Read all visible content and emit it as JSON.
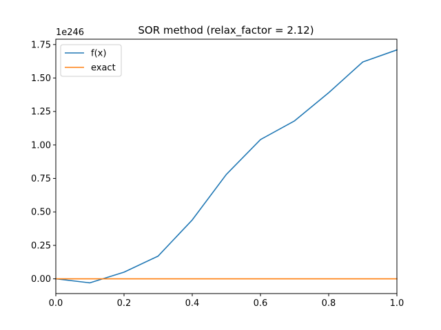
{
  "chart_data": {
    "type": "line",
    "title": "SOR method (relax_factor = 2.12)",
    "xlabel": "",
    "ylabel": "",
    "y_offset_label": "1e246",
    "xlim": [
      0.0,
      1.0
    ],
    "ylim": [
      -0.11,
      1.79
    ],
    "x_ticks": [
      0.0,
      0.2,
      0.4,
      0.6,
      0.8,
      1.0
    ],
    "x_tick_labels": [
      "0.0",
      "0.2",
      "0.4",
      "0.6",
      "0.8",
      "1.0"
    ],
    "y_ticks": [
      0.0,
      0.25,
      0.5,
      0.75,
      1.0,
      1.25,
      1.5,
      1.75
    ],
    "y_tick_labels": [
      "0.00",
      "0.25",
      "0.50",
      "0.75",
      "1.00",
      "1.25",
      "1.50",
      "1.75"
    ],
    "grid": false,
    "legend_position": "top-left",
    "series": [
      {
        "name": "f(x)",
        "color": "#1f77b4",
        "x": [
          0.0,
          0.1,
          0.2,
          0.3,
          0.4,
          0.5,
          0.6,
          0.7,
          0.8,
          0.9,
          1.0
        ],
        "y": [
          0.0,
          -0.03,
          0.05,
          0.17,
          0.44,
          0.78,
          1.04,
          1.18,
          1.39,
          1.62,
          1.71
        ]
      },
      {
        "name": "exact",
        "color": "#ff7f0e",
        "x": [
          0.0,
          0.1,
          0.2,
          0.3,
          0.4,
          0.5,
          0.6,
          0.7,
          0.8,
          0.9,
          1.0
        ],
        "y": [
          0.0,
          0.0,
          0.0,
          0.0,
          0.0,
          0.0,
          0.0,
          0.0,
          0.0,
          0.0,
          0.0
        ]
      }
    ]
  }
}
